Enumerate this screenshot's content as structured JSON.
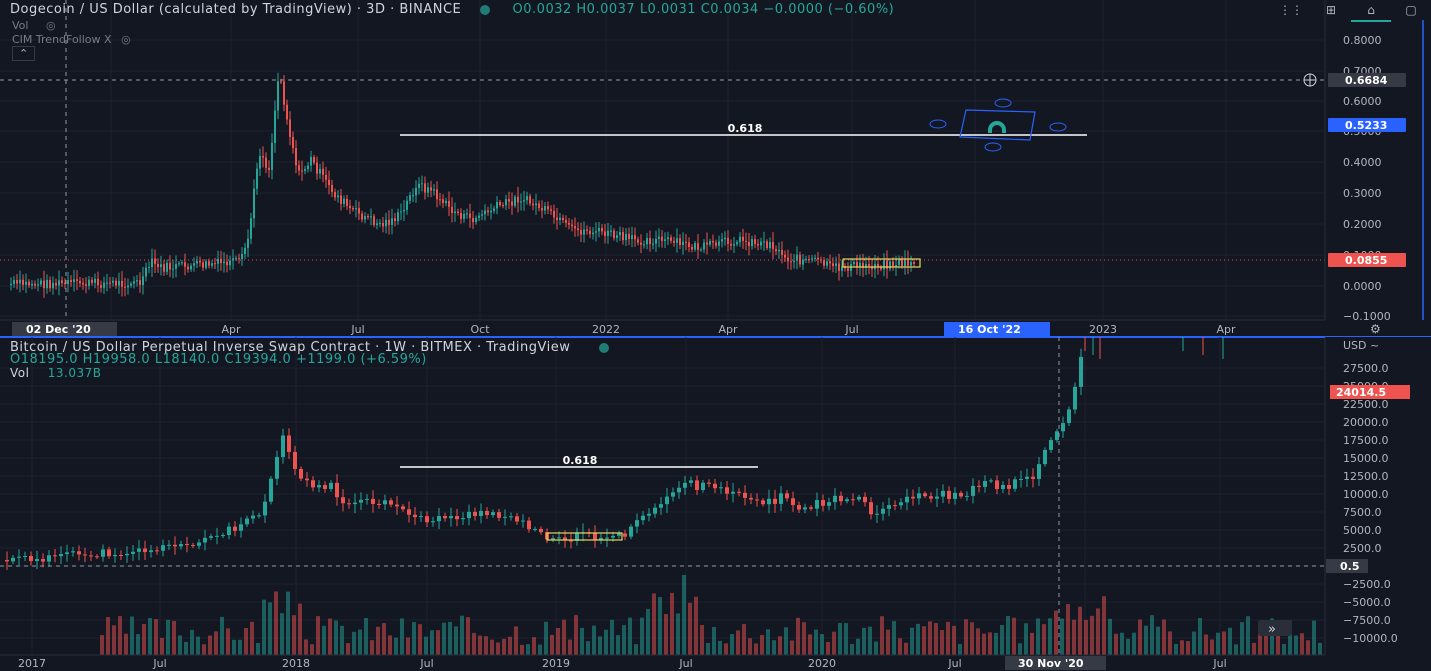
{
  "top": {
    "title": "Dogecoin / US Dollar (calculated by TradingView) · 3D · BINANCE",
    "ohlc": {
      "o": "O0.0032",
      "h": "H0.0037",
      "l": "L0.0031",
      "c": "C0.0034",
      "chg": "−0.0000 (−0.60%)"
    },
    "vol_label": "Vol",
    "indicator": "CIM TrendFollow X",
    "fib_label": "0.618",
    "price_ticks": [
      "0.8000",
      "0.7000",
      "0.6000",
      "0.5000",
      "0.4000",
      "0.3000",
      "0.2000",
      "0.1000",
      "0.0000",
      "−0.1000"
    ],
    "badges": {
      "crosshair": "0.6684",
      "blue": "0.5233",
      "last": "0.0855"
    },
    "time_ticks": [
      "Apr",
      "Jul",
      "Oct",
      "2022",
      "Apr",
      "Jul",
      "2023",
      "Apr"
    ],
    "time_badges": {
      "left": "02 Dec '20",
      "right": "16 Oct '22"
    }
  },
  "bottom": {
    "title": "Bitcoin / US Dollar Perpetual Inverse Swap Contract · 1W · BITMEX · TradingView",
    "ohlc": {
      "o": "O18195.0",
      "h": "H19958.0",
      "l": "L18140.0",
      "c": "C19394.0",
      "chg": "+1199.0 (+6.59%)"
    },
    "vol_label": "Vol",
    "vol_value": "13.037B",
    "fib_label": "0.618",
    "price_ticks": [
      "USD ~",
      "27500.0",
      "25000.0",
      "22500.0",
      "20000.0",
      "17500.0",
      "15000.0",
      "12500.0",
      "10000.0",
      "7500.0",
      "5000.0",
      "2500.0",
      "−2500.0",
      "−5000.0",
      "−7500.0",
      "−10000.0"
    ],
    "badges": {
      "last": "24014.5",
      "crosshair": "0.5"
    },
    "time_ticks": [
      "2017",
      "Jul",
      "2018",
      "Jul",
      "2019",
      "Jul",
      "2020",
      "Jul",
      "Jul"
    ],
    "time_badge": "30 Nov '20",
    "scroll_label": "»"
  },
  "colors": {
    "bg": "#131722",
    "up": "#26a69a",
    "down": "#ef5350",
    "accent": "#2962ff"
  }
}
